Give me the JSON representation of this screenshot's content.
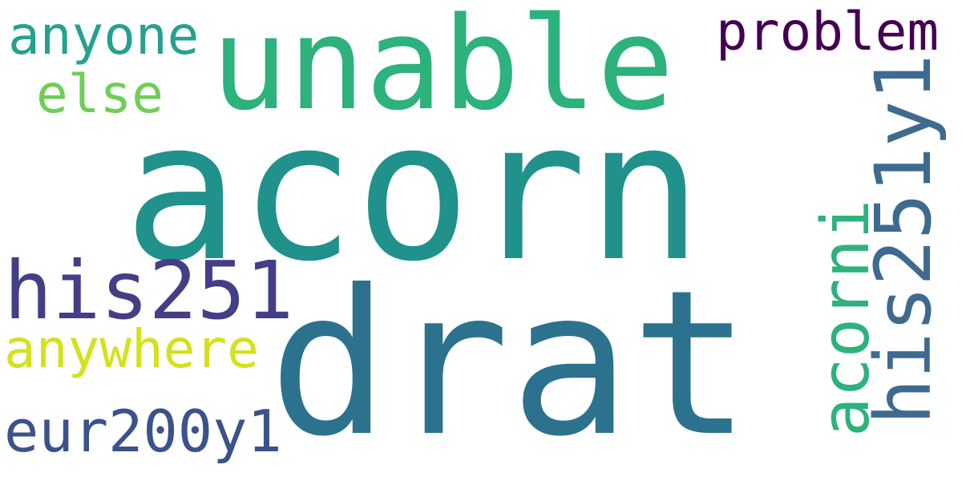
{
  "words": [
    {
      "text": "acorn",
      "color": "#21918c"
    },
    {
      "text": "drat",
      "color": "#2c728e"
    },
    {
      "text": "unable",
      "color": "#2db27d"
    },
    {
      "text": "problem",
      "color": "#440154"
    },
    {
      "text": "anyone",
      "color": "#25a18e"
    },
    {
      "text": "else",
      "color": "#6ece58"
    },
    {
      "text": "his251",
      "color": "#433e85"
    },
    {
      "text": "anywhere",
      "color": "#d4e11c"
    },
    {
      "text": "eur200y1",
      "color": "#3b528b"
    },
    {
      "text": "acorni",
      "color": "#2db27d"
    },
    {
      "text": "his251y1",
      "color": "#3e6a8f"
    }
  ]
}
